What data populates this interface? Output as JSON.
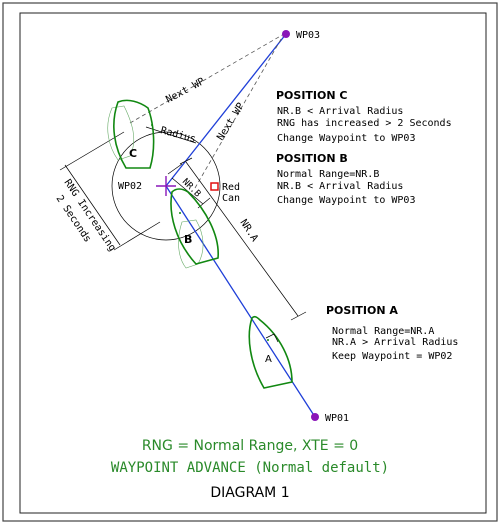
{
  "waypoints": {
    "wp1": "WP01",
    "wp2": "WP02",
    "wp3": "WP03"
  },
  "labels": {
    "next_wp_1": "Next WP",
    "next_wp_2": "Next WP",
    "radius": "Radius",
    "nr_b": "NR.B",
    "nr_a": "NR.A",
    "red_can_1": "Red",
    "red_can_2": "Can",
    "rng_increasing_1": "RNG Increasing",
    "rng_increasing_2": "2 Seconds",
    "boat_a": "A",
    "boat_b": "B",
    "boat_c": "C"
  },
  "position_c": {
    "title": "POSITION C",
    "line1": "NR.B < Arrival Radius",
    "line2": "RNG has increased > 2 Seconds",
    "line3": "Change Waypoint to WP03"
  },
  "position_b": {
    "title": "POSITION B",
    "line1": "Normal Range=NR.B",
    "line2": "NR.B < Arrival Radius",
    "line3": "Change Waypoint to WP03"
  },
  "position_a": {
    "title": "POSITION A",
    "line1": "Normal Range=NR.A",
    "line2": "NR.A > Arrival Radius",
    "line3": "Keep Waypoint = WP02"
  },
  "footer": {
    "line1": "RNG = Normal Range, XTE = 0",
    "line2": "WAYPOINT ADVANCE (Normal default)",
    "title": "DIAGRAM 1"
  },
  "colors": {
    "track": "#1f3fd8",
    "boat": "#118811",
    "waypoint": "#8a16b8",
    "red_can": "#e01010",
    "footer_green": "#2a8a2a"
  }
}
